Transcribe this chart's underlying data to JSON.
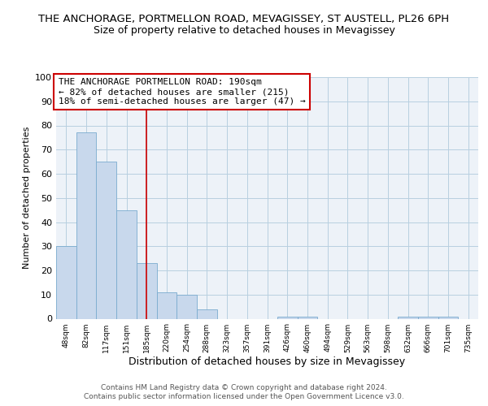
{
  "title_line1": "THE ANCHORAGE, PORTMELLON ROAD, MEVAGISSEY, ST AUSTELL, PL26 6PH",
  "title_line2": "Size of property relative to detached houses in Mevagissey",
  "xlabel": "Distribution of detached houses by size in Mevagissey",
  "ylabel": "Number of detached properties",
  "categories": [
    "48sqm",
    "82sqm",
    "117sqm",
    "151sqm",
    "185sqm",
    "220sqm",
    "254sqm",
    "288sqm",
    "323sqm",
    "357sqm",
    "391sqm",
    "426sqm",
    "460sqm",
    "494sqm",
    "529sqm",
    "563sqm",
    "598sqm",
    "632sqm",
    "666sqm",
    "701sqm",
    "735sqm"
  ],
  "values": [
    30,
    77,
    65,
    45,
    23,
    11,
    10,
    4,
    0,
    0,
    0,
    1,
    1,
    0,
    0,
    0,
    0,
    1,
    1,
    1,
    0
  ],
  "bar_color": "#c8d8ec",
  "bar_edge_color": "#7aabcf",
  "red_line_x": 4,
  "annotation_text": "THE ANCHORAGE PORTMELLON ROAD: 190sqm\n← 82% of detached houses are smaller (215)\n18% of semi-detached houses are larger (47) →",
  "annotation_box_color": "#ffffff",
  "annotation_box_edge": "#cc0000",
  "red_line_color": "#cc0000",
  "ylim": [
    0,
    100
  ],
  "yticks": [
    0,
    10,
    20,
    30,
    40,
    50,
    60,
    70,
    80,
    90,
    100
  ],
  "grid_color": "#b8cfe0",
  "bg_color": "#edf2f8",
  "footer_line1": "Contains HM Land Registry data © Crown copyright and database right 2024.",
  "footer_line2": "Contains public sector information licensed under the Open Government Licence v3.0.",
  "title_fontsize": 9.5,
  "subtitle_fontsize": 9,
  "annotation_fontsize": 8,
  "ylabel_fontsize": 8,
  "xlabel_fontsize": 9,
  "footer_fontsize": 6.5
}
